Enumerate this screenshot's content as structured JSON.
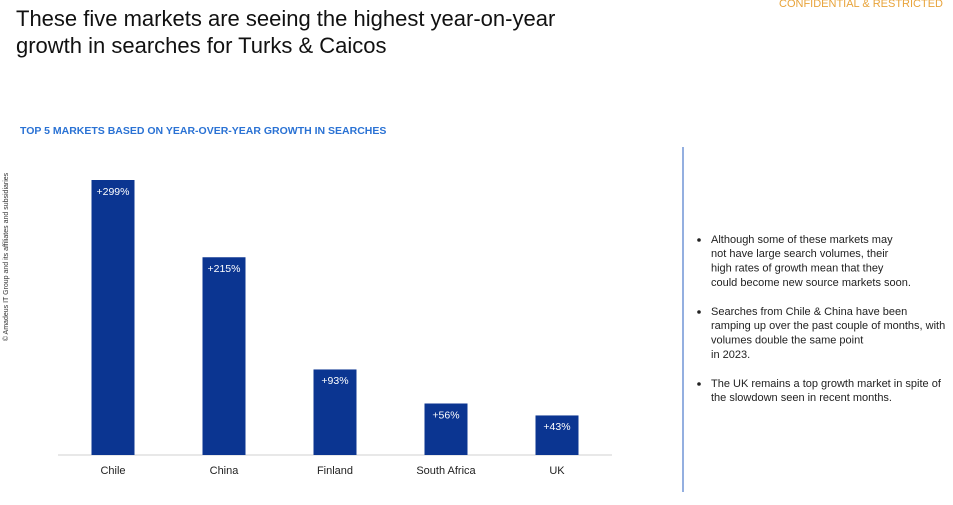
{
  "title": [
    "These five markets are seeing the highest year-on-year",
    "growth in searches for Turks & Caicos"
  ],
  "confidential": "CONFIDENTIAL & RESTRICTED",
  "copyright": "© Amadeus IT Group and its affiliates and subsidiaries",
  "chart_data": {
    "type": "bar",
    "title": "TOP 5 MARKETS BASED ON YEAR-OVER-YEAR GROWTH IN SEARCHES",
    "categories": [
      "Chile",
      "China",
      "Finland",
      "South Africa",
      "UK"
    ],
    "values": [
      299,
      215,
      93,
      56,
      43
    ],
    "value_labels": [
      "+299%",
      "+215%",
      "+93%",
      "+56%",
      "+43%"
    ],
    "color": "#0b3591"
  },
  "bullets": [
    [
      "Although some of these markets may",
      "not have large search volumes, their",
      "high rates of growth mean that they",
      "could become new source markets soon."
    ],
    [
      "Searches from Chile & China have been",
      "ramping up over the past couple of months, with",
      "volumes double the same point",
      "in 2023."
    ],
    [
      "The UK remains a top growth market in spite of",
      "the slowdown seen in recent months."
    ]
  ]
}
